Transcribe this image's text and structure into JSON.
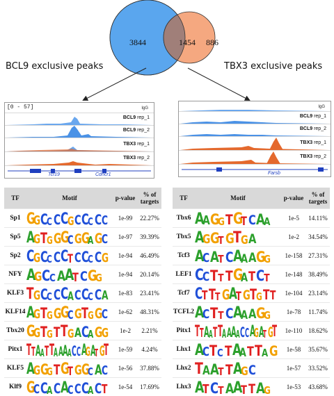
{
  "venn": {
    "left_count": "3844",
    "overlap_count": "1454",
    "right_count": "886",
    "colors": {
      "left": "#5aa6ee",
      "right": "#f5a880",
      "overlap": "#a07f79"
    }
  },
  "labels": {
    "left": "BCL9 exclusive peaks",
    "right": "TBX3 exclusive peaks"
  },
  "tracks_left": {
    "range": "[0 - 57]",
    "igg": "IgG",
    "rows": [
      {
        "name": "BCL9",
        "rep": " rep_1"
      },
      {
        "name": "BCL9",
        "rep": " rep_2"
      },
      {
        "name": "TBX3",
        "rep": " rep_1"
      },
      {
        "name": "TBX3",
        "rep": " rep_2"
      }
    ],
    "genes": [
      "Tcf19",
      "Cdhcr1"
    ]
  },
  "tracks_right": {
    "igg": "IgG",
    "rows": [
      {
        "name": "BCL9",
        "rep": " rep_1"
      },
      {
        "name": "BCL9",
        "rep": " rep_2"
      },
      {
        "name": "TBX3",
        "rep": " rep_1"
      },
      {
        "name": "TBX3",
        "rep": " rep_2"
      }
    ],
    "genes": [
      "Farsb"
    ]
  },
  "table_headers": {
    "tf": "TF",
    "motif": "Motif",
    "pvalue": "p-value",
    "pct": "% of targets"
  },
  "table_left": [
    {
      "tf": "Sp1",
      "motif": "GGCCCCGCCCCC",
      "p": "1e-99",
      "pct": "22.27%"
    },
    {
      "tf": "Sp5",
      "motif": "AGTGGGCGGAGC",
      "p": "1e-97",
      "pct": "39.39%"
    },
    {
      "tf": "Sp2",
      "motif": "CGCCCCTCCCCG",
      "p": "1e-94",
      "pct": "46.49%"
    },
    {
      "tf": "NFY",
      "motif": "AGCCAATCGG",
      "p": "1e-94",
      "pct": "20.14%"
    },
    {
      "tf": "KLF3",
      "motif": "TGCCCCACCCCA",
      "p": "1e-83",
      "pct": "23.41%"
    },
    {
      "tf": "KLF14",
      "motif": "AGTGGGCGTGGC",
      "p": "1e-62",
      "pct": "48.31%"
    },
    {
      "tf": "Tbx20",
      "motif": "GGTGTTGACAGG",
      "p": "1e-2",
      "pct": "2.21%"
    },
    {
      "tf": "Pitx1",
      "motif": "TTAATTAAAACCAGATGT",
      "p": "1e-59",
      "pct": "4.24%"
    },
    {
      "tf": "KLF5",
      "motif": "AGGGTGTGGCAC",
      "p": "1e-56",
      "pct": "37.88%"
    },
    {
      "tf": "Klf9",
      "motif": "GCCACACCCACT",
      "p": "1e-54",
      "pct": "17.69%"
    }
  ],
  "table_right": [
    {
      "tf": "Tbx6",
      "motif": "AAGGTGTCAA",
      "p": "1e-5",
      "pct": "14.11%"
    },
    {
      "tf": "Tbx5",
      "motif": "AGGTGTGA",
      "p": "1e-2",
      "pct": "34.54%"
    },
    {
      "tf": "Tcf3",
      "motif": "ACATCAAAGG",
      "p": "1e-158",
      "pct": "27.31%"
    },
    {
      "tf": "LEF1",
      "motif": "CCTTTGATCT",
      "p": "1e-148",
      "pct": "38.49%"
    },
    {
      "tf": "Tcf7",
      "motif": "CTTTGATGTGTT",
      "p": "1e-104",
      "pct": "23.14%"
    },
    {
      "tf": "TCFL2",
      "motif": "ACTTCAAAGG",
      "p": "1e-78",
      "pct": "11.74%"
    },
    {
      "tf": "Pitx1",
      "motif": "TTAATTAAAACCAGATGT",
      "p": "1e-110",
      "pct": "18.62%"
    },
    {
      "tf": "Lhx1",
      "motif": "ACTCTAATTAG",
      "p": "1e-58",
      "pct": "35.67%"
    },
    {
      "tf": "Lhx2",
      "motif": "TAATTAGC",
      "p": "1e-57",
      "pct": "33.52%"
    },
    {
      "tf": "Lhx3",
      "motif": "ATCTAATTAG",
      "p": "1e-53",
      "pct": "43.68%"
    }
  ]
}
